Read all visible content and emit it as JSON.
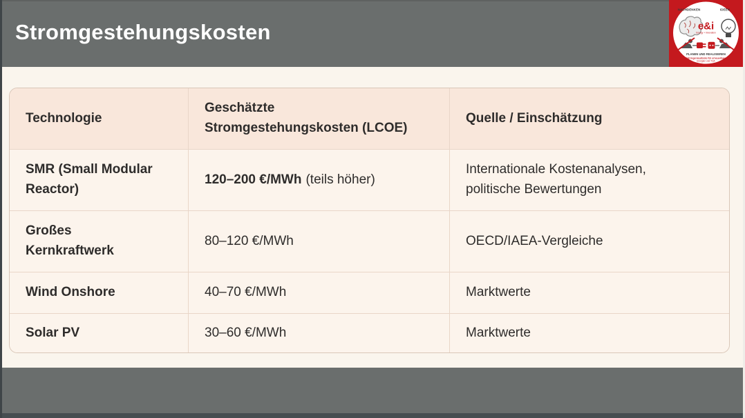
{
  "header": {
    "title": "Stromgestehungskosten"
  },
  "logo": {
    "top_left": "NACHDENKEN",
    "top_right": "IDEEN",
    "brand": "e&i",
    "brand_sub": "Energy + Innovation",
    "footer_line1": "PLANEN UND REALISIEREN",
    "footer_line2": "E&I Ingenieurbüro für erneuerbare",
    "footer_line3": "Energien und TGA"
  },
  "table": {
    "columns": [
      "Technologie",
      "Geschätzte\nStromgestehungskosten (LCOE)",
      "Quelle / Einschätzung"
    ],
    "rows": [
      {
        "technology": "SMR (Small Modular\nReactor)",
        "lcoe": "120–200 €/MWh",
        "lcoe_bold": true,
        "lcoe_suffix": "(teils höher)",
        "source": "Internationale Kostenanalysen,\npolitische Bewertungen"
      },
      {
        "technology": "Großes\nKernkraftwerk",
        "lcoe": "80–120 €/MWh",
        "lcoe_bold": false,
        "lcoe_suffix": "",
        "source": "OECD/IAEA-Vergleiche"
      },
      {
        "technology": "Wind Onshore",
        "lcoe": "40–70 €/MWh",
        "lcoe_bold": false,
        "lcoe_suffix": "",
        "source": "Marktwerte"
      },
      {
        "technology": "Solar PV",
        "lcoe": "30–60 €/MWh",
        "lcoe_bold": false,
        "lcoe_suffix": "",
        "source": "Marktwerte"
      }
    ]
  },
  "colors": {
    "accent_red": "#c4191e",
    "band_gray": "#6a6e6d",
    "slide_cream": "#faf5ed",
    "table_header_bg": "#f9e7db",
    "table_row_bg": "#fcf4ec",
    "table_border": "#e9d6c8",
    "text_dark": "#2e2c2b"
  }
}
